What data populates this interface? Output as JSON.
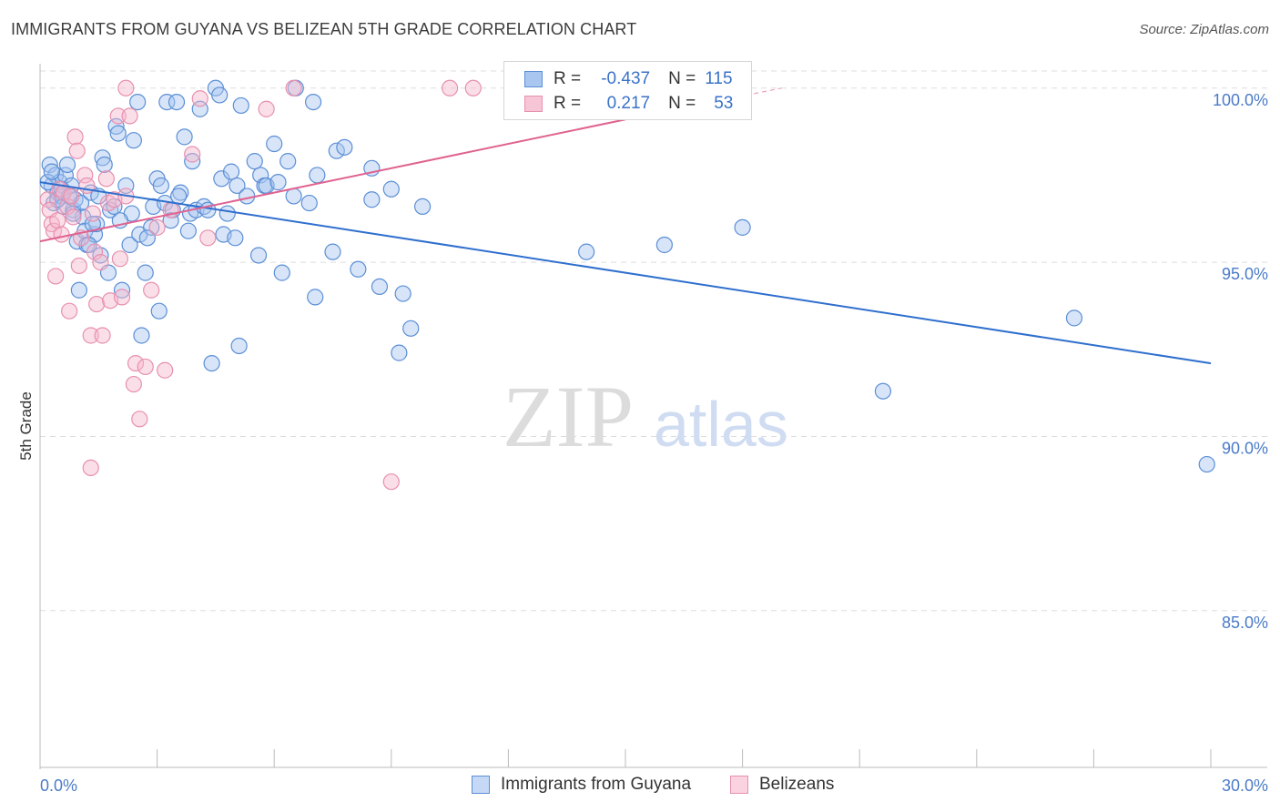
{
  "title": "IMMIGRANTS FROM GUYANA VS BELIZEAN 5TH GRADE CORRELATION CHART",
  "source": "Source: ZipAtlas.com",
  "watermark": {
    "zip": "ZIP",
    "atlas": "atlas"
  },
  "colors": {
    "blue_fill": "#a9c6f0",
    "blue_stroke": "#5b8fd6",
    "blue_line": "#2f6fce",
    "pink_fill": "#f7b8cd",
    "pink_stroke": "#e790b0",
    "pink_line": "#e0628f",
    "grid": "#dddddd",
    "tick_text": "#4a7bc8"
  },
  "legend": {
    "rows": [
      {
        "r_label": "R =",
        "r_value": "-0.437",
        "n_label": "N =",
        "n_value": "115"
      },
      {
        "r_label": "R =",
        "r_value": "0.217",
        "n_label": "N =",
        "n_value": "53"
      }
    ]
  },
  "bottom_legend": {
    "series1": "Immigrants from Guyana",
    "series2": "Belizeans"
  },
  "chart_data": {
    "type": "scatter",
    "xlabel": "",
    "ylabel": "5th Grade",
    "xlim": [
      0.0,
      30.0
    ],
    "ylim": [
      80.5,
      100.7
    ],
    "x_tick_labels": [
      "0.0%",
      "30.0%"
    ],
    "y_tick_labels": [
      "100.0%",
      "95.0%",
      "90.0%",
      "85.0%"
    ],
    "y_ticks": [
      100.0,
      95.0,
      90.0,
      85.0
    ],
    "grid": true,
    "legend_position": "top-center",
    "series": [
      {
        "name": "Immigrants from Guyana",
        "r": -0.437,
        "n": 115,
        "trend": {
          "x": [
            0.0,
            30.0
          ],
          "y": [
            97.3,
            92.1
          ]
        },
        "points": [
          [
            0.25,
            97.8
          ],
          [
            0.3,
            97.2
          ],
          [
            0.35,
            96.7
          ],
          [
            0.4,
            97.5
          ],
          [
            0.45,
            97.0
          ],
          [
            0.5,
            97.3
          ],
          [
            0.55,
            96.9
          ],
          [
            0.6,
            96.6
          ],
          [
            0.65,
            97.5
          ],
          [
            0.7,
            97.8
          ],
          [
            0.8,
            97.2
          ],
          [
            0.85,
            96.5
          ],
          [
            0.9,
            96.8
          ],
          [
            0.95,
            95.6
          ],
          [
            1.0,
            94.2
          ],
          [
            1.05,
            96.7
          ],
          [
            1.1,
            96.3
          ],
          [
            1.15,
            95.9
          ],
          [
            1.2,
            95.5
          ],
          [
            1.3,
            97.0
          ],
          [
            1.4,
            95.8
          ],
          [
            1.45,
            96.1
          ],
          [
            1.5,
            96.9
          ],
          [
            1.55,
            95.2
          ],
          [
            1.6,
            98.0
          ],
          [
            1.65,
            97.8
          ],
          [
            1.75,
            94.7
          ],
          [
            1.8,
            96.5
          ],
          [
            1.9,
            96.6
          ],
          [
            1.95,
            98.9
          ],
          [
            2.0,
            98.7
          ],
          [
            2.1,
            94.2
          ],
          [
            2.2,
            97.2
          ],
          [
            2.3,
            95.5
          ],
          [
            2.35,
            96.4
          ],
          [
            2.4,
            98.5
          ],
          [
            2.5,
            99.6
          ],
          [
            2.55,
            95.8
          ],
          [
            2.6,
            92.9
          ],
          [
            2.7,
            94.7
          ],
          [
            2.85,
            96.0
          ],
          [
            2.9,
            96.6
          ],
          [
            3.0,
            97.4
          ],
          [
            3.05,
            93.6
          ],
          [
            3.1,
            97.2
          ],
          [
            3.2,
            96.7
          ],
          [
            3.25,
            99.6
          ],
          [
            3.4,
            96.5
          ],
          [
            3.5,
            99.6
          ],
          [
            3.6,
            97.0
          ],
          [
            3.7,
            98.6
          ],
          [
            3.8,
            95.9
          ],
          [
            3.85,
            96.4
          ],
          [
            3.9,
            97.9
          ],
          [
            4.0,
            96.5
          ],
          [
            4.1,
            99.4
          ],
          [
            4.2,
            96.6
          ],
          [
            4.3,
            96.5
          ],
          [
            4.4,
            92.1
          ],
          [
            4.5,
            100.0
          ],
          [
            4.6,
            99.8
          ],
          [
            4.65,
            97.4
          ],
          [
            4.7,
            95.8
          ],
          [
            4.8,
            96.4
          ],
          [
            4.9,
            97.6
          ],
          [
            5.0,
            95.7
          ],
          [
            5.05,
            97.2
          ],
          [
            5.1,
            92.6
          ],
          [
            5.15,
            99.5
          ],
          [
            5.3,
            96.9
          ],
          [
            5.5,
            97.9
          ],
          [
            5.6,
            95.2
          ],
          [
            5.65,
            97.5
          ],
          [
            5.75,
            97.2
          ],
          [
            5.8,
            97.2
          ],
          [
            6.0,
            98.4
          ],
          [
            6.1,
            97.3
          ],
          [
            6.2,
            94.7
          ],
          [
            6.35,
            97.9
          ],
          [
            6.5,
            96.9
          ],
          [
            6.55,
            100.0
          ],
          [
            6.9,
            96.7
          ],
          [
            7.0,
            99.6
          ],
          [
            7.05,
            94.0
          ],
          [
            7.1,
            97.5
          ],
          [
            7.5,
            95.3
          ],
          [
            7.6,
            98.2
          ],
          [
            7.8,
            98.3
          ],
          [
            8.15,
            94.8
          ],
          [
            8.5,
            96.8
          ],
          [
            8.5,
            97.7
          ],
          [
            8.7,
            94.3
          ],
          [
            9.0,
            97.1
          ],
          [
            9.2,
            92.4
          ],
          [
            9.3,
            94.1
          ],
          [
            9.5,
            93.1
          ],
          [
            9.8,
            96.6
          ],
          [
            14.0,
            95.3
          ],
          [
            16.0,
            95.5
          ],
          [
            18.0,
            96.0
          ],
          [
            21.6,
            91.3
          ],
          [
            26.5,
            93.4
          ],
          [
            29.9,
            89.2
          ],
          [
            0.2,
            97.3
          ],
          [
            0.3,
            97.6
          ],
          [
            0.45,
            96.8
          ],
          [
            0.55,
            97.1
          ],
          [
            0.75,
            96.9
          ],
          [
            0.85,
            96.4
          ],
          [
            1.25,
            95.5
          ],
          [
            1.35,
            96.1
          ],
          [
            2.05,
            96.2
          ],
          [
            2.75,
            95.7
          ],
          [
            3.35,
            96.2
          ],
          [
            3.55,
            96.9
          ]
        ]
      },
      {
        "name": "Belizeans",
        "r": 0.217,
        "n": 53,
        "trend": {
          "x": [
            0.0,
            15.0
          ],
          "y": [
            95.6,
            99.1
          ]
        },
        "trend_extension": {
          "x": [
            15.0,
            19.0
          ],
          "y": [
            99.1,
            100.0
          ]
        },
        "points": [
          [
            0.2,
            96.8
          ],
          [
            0.25,
            96.5
          ],
          [
            0.3,
            96.1
          ],
          [
            0.35,
            95.9
          ],
          [
            0.4,
            94.6
          ],
          [
            0.45,
            96.2
          ],
          [
            0.5,
            97.1
          ],
          [
            0.55,
            95.8
          ],
          [
            0.6,
            97.0
          ],
          [
            0.7,
            96.6
          ],
          [
            0.75,
            93.6
          ],
          [
            0.8,
            96.9
          ],
          [
            0.85,
            96.3
          ],
          [
            0.9,
            98.6
          ],
          [
            0.95,
            98.2
          ],
          [
            1.0,
            94.9
          ],
          [
            1.05,
            95.7
          ],
          [
            1.15,
            97.5
          ],
          [
            1.2,
            97.2
          ],
          [
            1.3,
            92.9
          ],
          [
            1.35,
            96.4
          ],
          [
            1.4,
            95.3
          ],
          [
            1.45,
            93.8
          ],
          [
            1.55,
            95.0
          ],
          [
            1.6,
            92.9
          ],
          [
            1.7,
            97.4
          ],
          [
            1.75,
            96.7
          ],
          [
            1.8,
            93.9
          ],
          [
            1.9,
            96.8
          ],
          [
            2.0,
            99.2
          ],
          [
            2.05,
            95.1
          ],
          [
            2.1,
            94.0
          ],
          [
            2.2,
            96.9
          ],
          [
            2.3,
            99.2
          ],
          [
            2.45,
            92.1
          ],
          [
            2.55,
            90.5
          ],
          [
            2.7,
            92.0
          ],
          [
            2.85,
            94.2
          ],
          [
            3.0,
            96.0
          ],
          [
            3.2,
            91.9
          ],
          [
            3.35,
            96.5
          ],
          [
            3.9,
            98.1
          ],
          [
            4.1,
            99.7
          ],
          [
            4.3,
            95.7
          ],
          [
            5.8,
            99.4
          ],
          [
            6.5,
            100.0
          ],
          [
            9.0,
            88.7
          ],
          [
            10.5,
            100.0
          ],
          [
            11.1,
            100.0
          ],
          [
            13.0,
            99.8
          ],
          [
            2.2,
            100.0
          ],
          [
            1.3,
            89.1
          ],
          [
            2.4,
            91.5
          ]
        ]
      }
    ]
  }
}
